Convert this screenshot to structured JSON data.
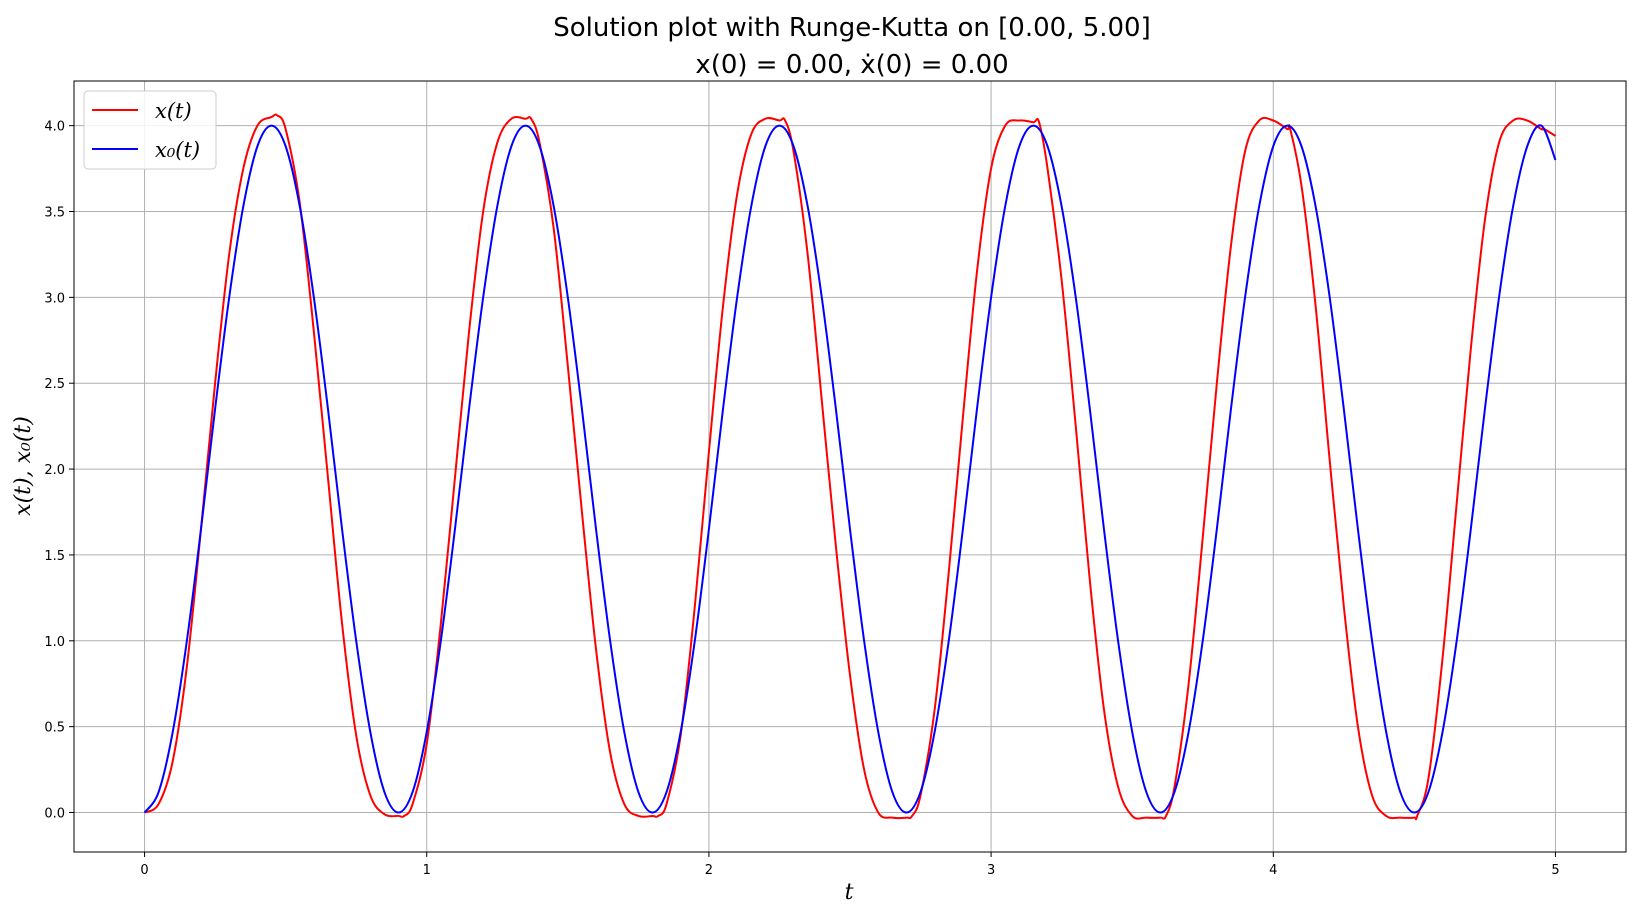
{
  "chart_data": {
    "type": "line",
    "title": "Solution plot with Runge-Kutta on [0.00, 5.00]",
    "subtitle": "x(0) = 0.00, ẋ(0) = 0.00",
    "xlabel": "t",
    "ylabel": "x(t), x₀(t)",
    "xlim": [
      -0.25,
      5.25
    ],
    "ylim": [
      -0.23,
      4.26
    ],
    "xticks": [
      0,
      1,
      2,
      3,
      4,
      5
    ],
    "xtick_labels": [
      "0",
      "1",
      "2",
      "3",
      "4",
      "5"
    ],
    "yticks": [
      0.0,
      0.5,
      1.0,
      1.5,
      2.0,
      2.5,
      3.0,
      3.5,
      4.0
    ],
    "ytick_labels": [
      "0.0",
      "0.5",
      "1.0",
      "1.5",
      "2.0",
      "2.5",
      "3.0",
      "3.5",
      "4.0"
    ],
    "grid": true,
    "legend_position": "top-left",
    "series": [
      {
        "name": "x(t)",
        "color": "#ff0000",
        "x": [
          0,
          0.05,
          0.1,
          0.15,
          0.2,
          0.25,
          0.3,
          0.35,
          0.4,
          0.45,
          0.47,
          0.5,
          0.55,
          0.6,
          0.65,
          0.7,
          0.75,
          0.8,
          0.85,
          0.9,
          0.92,
          0.95,
          1.0,
          1.05,
          1.1,
          1.15,
          1.2,
          1.25,
          1.3,
          1.35,
          1.37,
          1.4,
          1.45,
          1.5,
          1.55,
          1.6,
          1.65,
          1.7,
          1.75,
          1.8,
          1.82,
          1.85,
          1.9,
          1.95,
          2.0,
          2.05,
          2.1,
          2.15,
          2.2,
          2.25,
          2.27,
          2.3,
          2.35,
          2.4,
          2.45,
          2.5,
          2.55,
          2.6,
          2.65,
          2.7,
          2.72,
          2.75,
          2.8,
          2.85,
          2.9,
          2.95,
          3.0,
          3.05,
          3.1,
          3.15,
          3.17,
          3.2,
          3.25,
          3.3,
          3.35,
          3.4,
          3.45,
          3.5,
          3.55,
          3.6,
          3.62,
          3.65,
          3.7,
          3.75,
          3.8,
          3.85,
          3.9,
          3.95,
          4.0,
          4.05,
          4.06,
          4.1,
          4.15,
          4.2,
          4.25,
          4.3,
          4.35,
          4.4,
          4.45,
          4.5,
          4.51,
          4.55,
          4.6,
          4.65,
          4.7,
          4.75,
          4.8,
          4.85,
          4.9,
          4.95,
          4.96,
          5.0
        ],
        "y": [
          0.0,
          0.05,
          0.3,
          0.85,
          1.65,
          2.5,
          3.25,
          3.75,
          4.0,
          4.05,
          4.06,
          3.98,
          3.55,
          2.8,
          1.95,
          1.1,
          0.45,
          0.1,
          -0.01,
          -0.02,
          -0.02,
          0.05,
          0.4,
          1.1,
          1.95,
          2.8,
          3.5,
          3.9,
          4.04,
          4.04,
          4.04,
          3.9,
          3.4,
          2.6,
          1.75,
          0.95,
          0.35,
          0.05,
          -0.02,
          -0.02,
          -0.02,
          0.05,
          0.45,
          1.2,
          2.1,
          2.95,
          3.6,
          3.95,
          4.04,
          4.03,
          4.03,
          3.85,
          3.25,
          2.4,
          1.55,
          0.8,
          0.25,
          0.0,
          -0.03,
          -0.03,
          -0.02,
          0.1,
          0.6,
          1.4,
          2.3,
          3.15,
          3.75,
          4.0,
          4.03,
          4.02,
          4.02,
          3.75,
          3.1,
          2.25,
          1.35,
          0.6,
          0.15,
          -0.02,
          -0.03,
          -0.03,
          -0.02,
          0.15,
          0.75,
          1.6,
          2.5,
          3.3,
          3.85,
          4.03,
          4.03,
          3.98,
          3.98,
          3.65,
          2.95,
          2.05,
          1.2,
          0.5,
          0.1,
          -0.02,
          -0.03,
          -0.03,
          -0.02,
          0.2,
          0.9,
          1.8,
          2.7,
          3.45,
          3.9,
          4.03,
          4.03,
          3.98,
          3.98,
          3.94
        ]
      },
      {
        "name": "x₀(t)",
        "color": "#0000ff",
        "x": [
          0,
          0.05,
          0.1,
          0.15,
          0.2,
          0.25,
          0.3,
          0.35,
          0.4,
          0.45,
          0.5,
          0.55,
          0.6,
          0.65,
          0.7,
          0.75,
          0.8,
          0.85,
          0.9,
          0.95,
          1.0,
          1.05,
          1.1,
          1.15,
          1.2,
          1.25,
          1.3,
          1.35,
          1.4,
          1.45,
          1.5,
          1.55,
          1.6,
          1.65,
          1.7,
          1.75,
          1.8,
          1.85,
          1.9,
          1.95,
          2.0,
          2.05,
          2.1,
          2.15,
          2.2,
          2.25,
          2.3,
          2.35,
          2.4,
          2.45,
          2.5,
          2.55,
          2.6,
          2.65,
          2.7,
          2.75,
          2.8,
          2.85,
          2.9,
          2.95,
          3.0,
          3.05,
          3.1,
          3.15,
          3.2,
          3.25,
          3.3,
          3.35,
          3.4,
          3.45,
          3.5,
          3.55,
          3.6,
          3.65,
          3.7,
          3.75,
          3.8,
          3.85,
          3.9,
          3.95,
          4.0,
          4.05,
          4.1,
          4.15,
          4.2,
          4.25,
          4.3,
          4.35,
          4.4,
          4.45,
          4.5,
          4.55,
          4.6,
          4.65,
          4.7,
          4.75,
          4.8,
          4.85,
          4.9,
          4.95,
          5.0
        ],
        "y": [
          0.0,
          0.12,
          0.47,
          1.0,
          1.65,
          2.35,
          3.0,
          3.53,
          3.88,
          4.0,
          3.88,
          3.53,
          3.0,
          2.35,
          1.65,
          1.0,
          0.47,
          0.12,
          0.0,
          0.12,
          0.47,
          1.0,
          1.65,
          2.35,
          3.0,
          3.53,
          3.88,
          4.0,
          3.88,
          3.53,
          3.0,
          2.35,
          1.65,
          1.0,
          0.47,
          0.12,
          0.0,
          0.12,
          0.47,
          1.0,
          1.65,
          2.35,
          3.0,
          3.53,
          3.88,
          4.0,
          3.88,
          3.53,
          3.0,
          2.35,
          1.65,
          1.0,
          0.47,
          0.12,
          0.0,
          0.12,
          0.47,
          1.0,
          1.65,
          2.35,
          3.0,
          3.53,
          3.88,
          4.0,
          3.88,
          3.53,
          3.0,
          2.35,
          1.65,
          1.0,
          0.47,
          0.12,
          0.0,
          0.12,
          0.47,
          1.0,
          1.65,
          2.35,
          3.0,
          3.53,
          3.88,
          4.0,
          3.88,
          3.53,
          3.0,
          2.35,
          1.65,
          1.0,
          0.47,
          0.12,
          0.0,
          0.12,
          0.47,
          1.0,
          1.65,
          2.35,
          3.0,
          3.53,
          3.88,
          4.0,
          3.8
        ]
      }
    ]
  }
}
